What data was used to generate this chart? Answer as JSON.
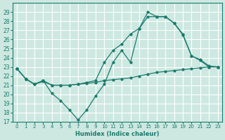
{
  "xlabel": "Humidex (Indice chaleur)",
  "background_color": "#cde8e0",
  "line_color": "#1a7a6e",
  "grid_color": "#ffffff",
  "xlim": [
    -0.5,
    23.5
  ],
  "ylim": [
    17,
    30
  ],
  "yticks": [
    17,
    18,
    19,
    20,
    21,
    22,
    23,
    24,
    25,
    26,
    27,
    28,
    29
  ],
  "xticks": [
    0,
    1,
    2,
    3,
    4,
    5,
    6,
    7,
    8,
    9,
    10,
    11,
    12,
    13,
    14,
    15,
    16,
    17,
    18,
    19,
    20,
    21,
    22,
    23
  ],
  "series": [
    {
      "x": [
        0,
        1,
        2,
        3,
        4,
        5,
        6,
        7,
        8,
        9,
        10,
        11,
        12,
        13,
        14,
        15,
        16,
        17,
        18,
        19,
        20,
        21,
        22,
        23
      ],
      "y": [
        22.8,
        21.7,
        21.1,
        21.5,
        20.1,
        19.3,
        18.3,
        17.2,
        18.3,
        19.8,
        21.1,
        23.5,
        24.8,
        23.5,
        27.2,
        29.0,
        28.5,
        28.5,
        27.8,
        26.5,
        24.2,
        23.7,
        23.0,
        23.0
      ]
    },
    {
      "x": [
        0,
        1,
        2,
        3,
        4,
        5,
        6,
        7,
        8,
        9,
        10,
        11,
        12,
        13,
        14,
        15,
        16,
        17,
        18,
        19,
        20,
        21,
        22,
        23
      ],
      "y": [
        22.8,
        21.7,
        21.1,
        21.4,
        21.0,
        21.0,
        21.0,
        21.1,
        21.2,
        21.3,
        21.5,
        21.6,
        21.7,
        21.8,
        22.0,
        22.2,
        22.4,
        22.5,
        22.6,
        22.7,
        22.8,
        22.9,
        23.0,
        23.0
      ]
    },
    {
      "x": [
        0,
        1,
        2,
        3,
        4,
        5,
        6,
        7,
        8,
        9,
        10,
        11,
        12,
        13,
        14,
        15,
        16,
        17,
        18,
        19,
        20,
        21,
        22,
        23
      ],
      "y": [
        22.8,
        21.7,
        21.1,
        21.5,
        21.0,
        21.0,
        21.0,
        21.1,
        21.3,
        21.5,
        23.5,
        24.8,
        25.5,
        26.6,
        27.2,
        28.5,
        28.5,
        28.5,
        27.8,
        26.6,
        24.2,
        23.8,
        23.1,
        23.0
      ]
    }
  ]
}
